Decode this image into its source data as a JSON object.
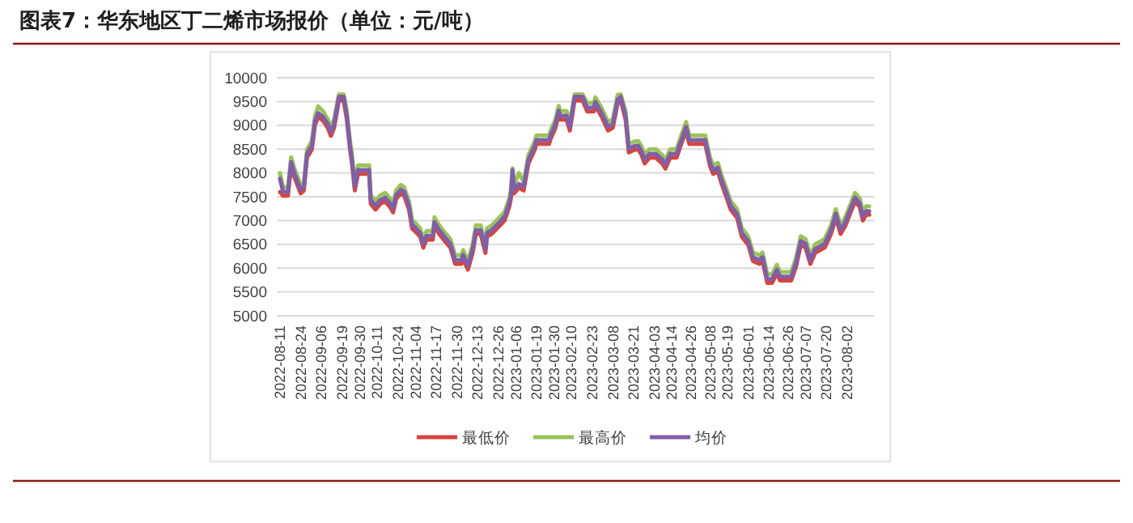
{
  "chart_data": {
    "type": "line",
    "title": "图表7：华东地区丁二烯市场报价（单位：元/吨）",
    "x": [
      "2022-08-11",
      "2022-08-13",
      "2022-08-16",
      "2022-08-18",
      "2022-08-20",
      "2022-08-24",
      "2022-08-26",
      "2022-08-28",
      "2022-08-31",
      "2022-09-02",
      "2022-09-04",
      "2022-09-07",
      "2022-09-10",
      "2022-09-12",
      "2022-09-14",
      "2022-09-17",
      "2022-09-20",
      "2022-09-22",
      "2022-09-24",
      "2022-09-25",
      "2022-09-27",
      "2022-09-29",
      "2022-10-06",
      "2022-10-07",
      "2022-10-10",
      "2022-10-13",
      "2022-10-16",
      "2022-10-19",
      "2022-10-21",
      "2022-10-23",
      "2022-10-26",
      "2022-10-28",
      "2022-10-31",
      "2022-11-02",
      "2022-11-04",
      "2022-11-07",
      "2022-11-09",
      "2022-11-11",
      "2022-11-15",
      "2022-11-16",
      "2022-11-19",
      "2022-11-23",
      "2022-11-26",
      "2022-11-29",
      "2022-12-03",
      "2022-12-04",
      "2022-12-07",
      "2022-12-10",
      "2022-12-12",
      "2022-12-15",
      "2022-12-18",
      "2022-12-19",
      "2022-12-22",
      "2022-12-27",
      "2022-12-30",
      "2023-01-02",
      "2023-01-03",
      "2023-01-04",
      "2023-01-05",
      "2023-01-08",
      "2023-01-11",
      "2023-01-14",
      "2023-01-18",
      "2023-01-19",
      "2023-01-27",
      "2023-01-28",
      "2023-01-31",
      "2023-02-02",
      "2023-02-03",
      "2023-02-07",
      "2023-02-09",
      "2023-02-12",
      "2023-02-17",
      "2023-02-20",
      "2023-02-24",
      "2023-02-25",
      "2023-03-01",
      "2023-03-05",
      "2023-03-08",
      "2023-03-11",
      "2023-03-13",
      "2023-03-16",
      "2023-03-18",
      "2023-03-22",
      "2023-03-24",
      "2023-03-26",
      "2023-03-28",
      "2023-03-31",
      "2023-04-04",
      "2023-04-08",
      "2023-04-10",
      "2023-04-13",
      "2023-04-17",
      "2023-04-20",
      "2023-04-23",
      "2023-04-25",
      "2023-05-05",
      "2023-05-08",
      "2023-05-10",
      "2023-05-13",
      "2023-05-15",
      "2023-05-18",
      "2023-05-21",
      "2023-05-25",
      "2023-05-28",
      "2023-06-01",
      "2023-06-04",
      "2023-06-08",
      "2023-06-10",
      "2023-06-13",
      "2023-06-16",
      "2023-06-19",
      "2023-06-21",
      "2023-06-28",
      "2023-07-01",
      "2023-07-04",
      "2023-07-07",
      "2023-07-10",
      "2023-07-13",
      "2023-07-19",
      "2023-07-23",
      "2023-07-26",
      "2023-07-29",
      "2023-08-01",
      "2023-08-03",
      "2023-08-07",
      "2023-08-10",
      "2023-08-12",
      "2023-08-14",
      "2023-08-16"
    ],
    "series": [
      {
        "name": "最低价",
        "color": "#d7443d",
        "values": [
          7600,
          7520,
          7520,
          8150,
          7920,
          7570,
          7630,
          8320,
          8490,
          9010,
          9180,
          9100,
          8950,
          8780,
          8950,
          9520,
          9520,
          9120,
          8490,
          8260,
          7630,
          7980,
          7980,
          7350,
          7230,
          7350,
          7400,
          7290,
          7170,
          7460,
          7570,
          7520,
          7230,
          6830,
          6770,
          6660,
          6430,
          6600,
          6600,
          6890,
          6720,
          6550,
          6430,
          6090,
          6090,
          6200,
          5970,
          6320,
          6720,
          6720,
          6320,
          6660,
          6720,
          6890,
          7000,
          7290,
          7460,
          7980,
          7570,
          7690,
          7630,
          8200,
          8490,
          8610,
          8610,
          8720,
          8950,
          9230,
          9120,
          9120,
          8890,
          9520,
          9520,
          9290,
          9290,
          9410,
          9180,
          8890,
          8950,
          9460,
          9520,
          9120,
          8430,
          8490,
          8490,
          8380,
          8200,
          8320,
          8320,
          8200,
          8090,
          8320,
          8320,
          8610,
          8890,
          8610,
          8610,
          8150,
          7980,
          8030,
          7800,
          7520,
          7230,
          7060,
          6660,
          6490,
          6150,
          6090,
          6150,
          5690,
          5690,
          5890,
          5740,
          5740,
          6030,
          6490,
          6430,
          6090,
          6320,
          6430,
          6720,
          7060,
          6720,
          6890,
          7060,
          7400,
          7290,
          7000,
          7120,
          7120
        ]
      },
      {
        "name": "最高价",
        "color": "#9bc35a",
        "values": [
          8000,
          7700,
          7700,
          8330,
          8100,
          7750,
          7810,
          8500,
          8670,
          9200,
          9400,
          9300,
          9130,
          8960,
          9130,
          9650,
          9650,
          9300,
          8670,
          8440,
          7810,
          8160,
          8160,
          7530,
          7410,
          7530,
          7580,
          7470,
          7350,
          7640,
          7750,
          7700,
          7410,
          7010,
          6950,
          6840,
          6610,
          6780,
          6780,
          7070,
          6900,
          6730,
          6610,
          6270,
          6270,
          6380,
          6150,
          6500,
          6900,
          6900,
          6500,
          6840,
          6900,
          7070,
          7180,
          7470,
          7640,
          8100,
          7750,
          8000,
          7810,
          8380,
          8670,
          8790,
          8790,
          8900,
          9130,
          9410,
          9300,
          9300,
          9070,
          9650,
          9650,
          9470,
          9470,
          9590,
          9360,
          9070,
          9130,
          9640,
          9650,
          9300,
          8610,
          8670,
          8670,
          8560,
          8380,
          8500,
          8500,
          8380,
          8270,
          8500,
          8500,
          8790,
          9070,
          8790,
          8790,
          8330,
          8160,
          8210,
          7980,
          7700,
          7410,
          7240,
          6840,
          6670,
          6330,
          6270,
          6330,
          5870,
          5870,
          6070,
          5920,
          5920,
          6210,
          6670,
          6610,
          6270,
          6500,
          6610,
          6900,
          7240,
          6900,
          7070,
          7240,
          7580,
          7470,
          7180,
          7300,
          7300
        ]
      },
      {
        "name": "均价",
        "color": "#7f5fa8",
        "values": [
          7880,
          7600,
          7600,
          8230,
          8000,
          7650,
          7710,
          8400,
          8570,
          9090,
          9260,
          9180,
          9030,
          8860,
          9030,
          9600,
          9600,
          9200,
          8570,
          8340,
          7710,
          8060,
          8060,
          7430,
          7310,
          7430,
          7480,
          7370,
          7250,
          7540,
          7650,
          7600,
          7310,
          6910,
          6850,
          6740,
          6510,
          6680,
          6680,
          6970,
          6800,
          6630,
          6510,
          6170,
          6170,
          6280,
          6050,
          6400,
          6800,
          6800,
          6400,
          6740,
          6800,
          6970,
          7080,
          7370,
          7540,
          8060,
          7650,
          7770,
          7710,
          8280,
          8570,
          8690,
          8690,
          8800,
          9030,
          9310,
          9200,
          9200,
          8970,
          9600,
          9600,
          9370,
          9370,
          9490,
          9260,
          8970,
          9030,
          9540,
          9600,
          9200,
          8510,
          8570,
          8570,
          8460,
          8280,
          8400,
          8400,
          8280,
          8170,
          8400,
          8400,
          8690,
          8970,
          8690,
          8690,
          8230,
          8060,
          8110,
          7880,
          7600,
          7310,
          7140,
          6740,
          6570,
          6230,
          6170,
          6230,
          5770,
          5770,
          5970,
          5820,
          5820,
          6110,
          6570,
          6510,
          6170,
          6400,
          6510,
          6800,
          7140,
          6800,
          6970,
          7140,
          7480,
          7370,
          7080,
          7200,
          7200
        ]
      }
    ],
    "xlim": [
      "2022-08-09",
      "2023-08-19"
    ],
    "xticks": [
      "2022-08-11",
      "2022-08-24",
      "2022-09-06",
      "2022-09-19",
      "2022-09-30",
      "2022-10-11",
      "2022-10-24",
      "2022-11-04",
      "2022-11-17",
      "2022-11-30",
      "2022-12-13",
      "2022-12-26",
      "2023-01-06",
      "2023-01-19",
      "2023-01-30",
      "2023-02-10",
      "2023-02-23",
      "2023-03-08",
      "2023-03-21",
      "2023-04-03",
      "2023-04-14",
      "2023-04-26",
      "2023-05-08",
      "2023-05-19",
      "2023-06-01",
      "2023-06-14",
      "2023-06-26",
      "2023-07-07",
      "2023-07-20",
      "2023-08-02"
    ],
    "ylim": [
      5000,
      10000
    ],
    "yticks": [
      5000,
      5500,
      6000,
      6500,
      7000,
      7500,
      8000,
      8500,
      9000,
      9500,
      10000
    ],
    "grid": "y",
    "legend": "bottom",
    "marker": "none",
    "line_style": "solid"
  }
}
